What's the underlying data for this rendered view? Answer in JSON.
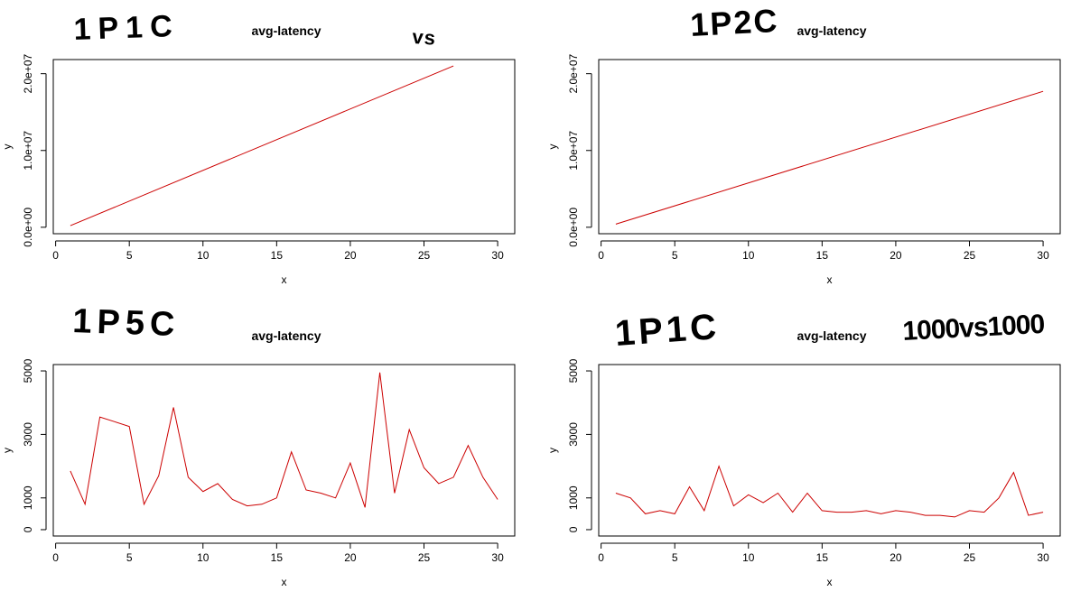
{
  "chart_data": [
    {
      "type": "line",
      "title": "avg-latency",
      "handwritten_notes": [
        "1P1C",
        "vs"
      ],
      "xlabel": "x",
      "ylabel": "y",
      "xlim": [
        1,
        30
      ],
      "ylim": [
        0,
        21000000
      ],
      "x_ticks": [
        0,
        5,
        10,
        15,
        20,
        25,
        30
      ],
      "y_ticks": [
        0,
        10000000,
        20000000
      ],
      "y_tick_labels": [
        "0.0e+00",
        "1.0e+07",
        "2.0e+07"
      ],
      "series_color": "#cc0000",
      "series": [
        {
          "x": [
            1,
            27
          ],
          "values": [
            200000,
            21000000
          ]
        }
      ]
    },
    {
      "type": "line",
      "title": "avg-latency",
      "handwritten_notes": [
        "1P2C"
      ],
      "xlabel": "x",
      "ylabel": "y",
      "xlim": [
        1,
        30
      ],
      "ylim": [
        0,
        21000000
      ],
      "x_ticks": [
        0,
        5,
        10,
        15,
        20,
        25,
        30
      ],
      "y_ticks": [
        0,
        10000000,
        20000000
      ],
      "y_tick_labels": [
        "0.0e+00",
        "1.0e+07",
        "2.0e+07"
      ],
      "series_color": "#cc0000",
      "series": [
        {
          "x": [
            1,
            30
          ],
          "values": [
            400000,
            17700000
          ]
        }
      ]
    },
    {
      "type": "line",
      "title": "avg-latency",
      "handwritten_notes": [
        "1P5C"
      ],
      "xlabel": "x",
      "ylabel": "y",
      "xlim": [
        1,
        30
      ],
      "ylim": [
        0,
        5000
      ],
      "x_ticks": [
        0,
        5,
        10,
        15,
        20,
        25,
        30
      ],
      "y_ticks": [
        0,
        1000,
        3000,
        5000
      ],
      "y_tick_labels": [
        "0",
        "1000",
        "3000",
        "5000"
      ],
      "series_color": "#cc0000",
      "series": [
        {
          "x": [
            1,
            2,
            3,
            4,
            5,
            6,
            7,
            8,
            9,
            10,
            11,
            12,
            13,
            14,
            15,
            16,
            17,
            18,
            19,
            20,
            21,
            22,
            23,
            24,
            25,
            26,
            27,
            28,
            29,
            30
          ],
          "values": [
            1850,
            800,
            3550,
            3400,
            3250,
            800,
            1700,
            3850,
            1650,
            1200,
            1450,
            950,
            750,
            800,
            1000,
            2450,
            1250,
            1150,
            1000,
            2100,
            700,
            4950,
            1150,
            3150,
            1950,
            1450,
            1650,
            2650,
            1650,
            950
          ]
        }
      ]
    },
    {
      "type": "line",
      "title": "avg-latency",
      "handwritten_notes": [
        "1P1C",
        "1000vs1000"
      ],
      "xlabel": "x",
      "ylabel": "y",
      "xlim": [
        1,
        30
      ],
      "ylim": [
        0,
        5000
      ],
      "x_ticks": [
        0,
        5,
        10,
        15,
        20,
        25,
        30
      ],
      "y_ticks": [
        0,
        1000,
        3000,
        5000
      ],
      "y_tick_labels": [
        "0",
        "1000",
        "3000",
        "5000"
      ],
      "series_color": "#cc0000",
      "series": [
        {
          "x": [
            1,
            2,
            3,
            4,
            5,
            6,
            7,
            8,
            9,
            10,
            11,
            12,
            13,
            14,
            15,
            16,
            17,
            18,
            19,
            20,
            21,
            22,
            23,
            24,
            25,
            26,
            27,
            28,
            29,
            30
          ],
          "values": [
            1150,
            1000,
            500,
            600,
            500,
            1350,
            600,
            2000,
            750,
            1100,
            850,
            1150,
            550,
            1150,
            600,
            550,
            550,
            600,
            500,
            600,
            550,
            450,
            450,
            400,
            600,
            550,
            1000,
            1800,
            450,
            550
          ]
        }
      ]
    }
  ]
}
